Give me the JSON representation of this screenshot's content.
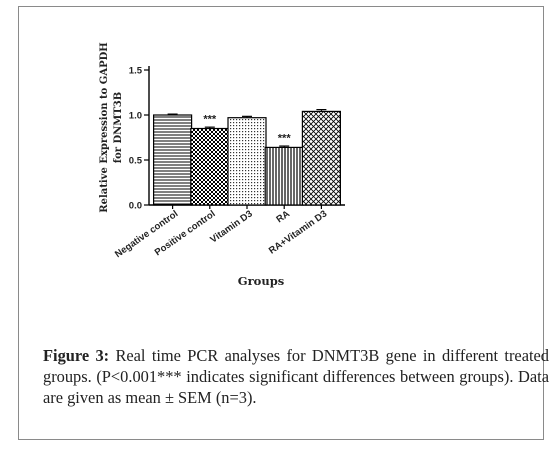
{
  "figure": {
    "caption_label": "Figure 3:",
    "caption_text": " Real time PCR analyses for DNMT3B gene in different treated groups. (P<0.001*** indicates significant differences between groups). Data are given as mean ± SEM (n=3)."
  },
  "chart_data": {
    "type": "bar",
    "title": "",
    "xlabel": "Groups",
    "ylabel_lines": [
      "Relative Expression to GAPDH",
      "for DNMT3B"
    ],
    "ylim": [
      0,
      1.5
    ],
    "yticks": [
      "0.0",
      "0.5",
      "1.0",
      "1.5"
    ],
    "ytick_values": [
      0.0,
      0.5,
      1.0,
      1.5
    ],
    "grid": false,
    "legend": "none",
    "categories": [
      "Negative control",
      "Positive control",
      "Vitamin D3",
      "RA",
      "RA+Vitamin D3"
    ],
    "values": [
      1.0,
      0.85,
      0.97,
      0.64,
      1.04
    ],
    "sem": [
      0.01,
      0.015,
      0.015,
      0.015,
      0.02
    ],
    "annotations": [
      "",
      "***",
      "",
      "***",
      ""
    ],
    "patterns": [
      "horizontal-lines",
      "checker",
      "dots",
      "vertical-lines",
      "diagonal-grid"
    ],
    "colors": {
      "bar_stroke": "#000000",
      "axis": "#000000",
      "frame": "#8a8a8a"
    }
  }
}
